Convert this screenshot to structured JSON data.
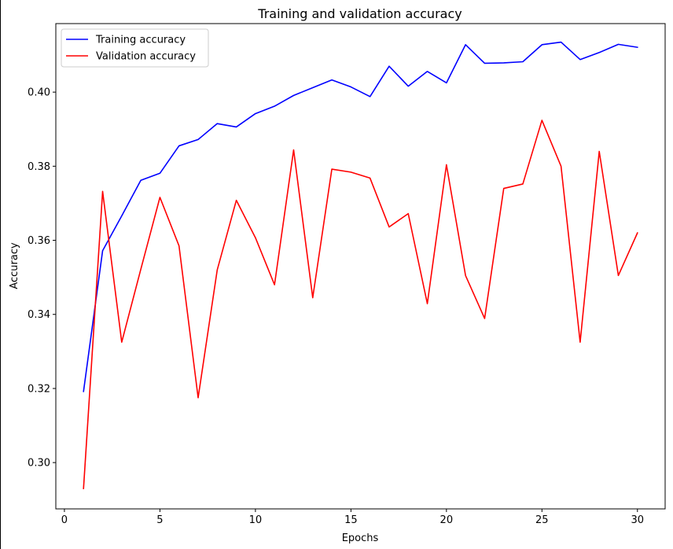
{
  "chart_data": {
    "type": "line",
    "title": "Training and validation accuracy",
    "xlabel": "Epochs",
    "ylabel": "Accuracy",
    "xlim": [
      -0.45,
      31.45
    ],
    "ylim": [
      0.2875,
      0.4185
    ],
    "xticks": [
      0,
      5,
      10,
      15,
      20,
      25,
      30
    ],
    "yticks": [
      0.3,
      0.32,
      0.34,
      0.36,
      0.38,
      0.4
    ],
    "xtick_labels": [
      "0",
      "5",
      "10",
      "15",
      "20",
      "25",
      "30"
    ],
    "ytick_labels": [
      "0.30",
      "0.32",
      "0.34",
      "0.36",
      "0.38",
      "0.40"
    ],
    "grid": false,
    "legend_position": "top-left",
    "x": [
      1,
      2,
      3,
      4,
      5,
      6,
      7,
      8,
      9,
      10,
      11,
      12,
      13,
      14,
      15,
      16,
      17,
      18,
      19,
      20,
      21,
      22,
      23,
      24,
      25,
      26,
      27,
      28,
      29,
      30
    ],
    "series": [
      {
        "name": "Training accuracy",
        "color": "#0000ff",
        "values": [
          0.3192,
          0.3572,
          0.3666,
          0.3762,
          0.3781,
          0.3855,
          0.3872,
          0.3915,
          0.3906,
          0.3942,
          0.3962,
          0.3991,
          0.4012,
          0.4033,
          0.4014,
          0.3988,
          0.407,
          0.4016,
          0.4056,
          0.4025,
          0.4128,
          0.4078,
          0.4079,
          0.4082,
          0.4128,
          0.4135,
          0.4088,
          0.4107,
          0.4129,
          0.4121
        ]
      },
      {
        "name": "Validation accuracy",
        "color": "#ff0000",
        "values": [
          0.293,
          0.3732,
          0.3325,
          0.3522,
          0.3716,
          0.3585,
          0.3175,
          0.352,
          0.3708,
          0.3607,
          0.348,
          0.3844,
          0.3445,
          0.3792,
          0.3784,
          0.3768,
          0.3636,
          0.3672,
          0.3429,
          0.3804,
          0.3505,
          0.3389,
          0.374,
          0.3752,
          0.3924,
          0.38,
          0.3325,
          0.384,
          0.3505,
          0.362
        ]
      }
    ]
  }
}
